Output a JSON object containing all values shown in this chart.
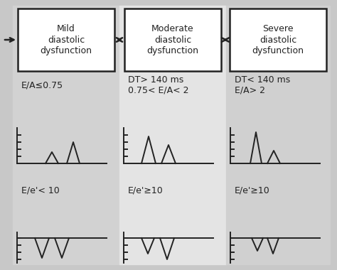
{
  "bg_outer": "#c8c8c8",
  "col1_bg": "#d2d2d2",
  "col2_bg": "#e4e4e4",
  "col3_bg": "#d0d0d0",
  "box_color": "#ffffff",
  "box_edge": "#222222",
  "text_color": "#222222",
  "line_color": "#222222",
  "headers": [
    "Mild\ndiastolic\ndysfunction",
    "Moderate\ndiastolic\ndysfunction",
    "Severe\ndiastolic\ndysfunction"
  ],
  "criteria1": [
    "E/A≤0.75",
    "DT> 140 ms\n0.75< E/A< 2",
    "DT< 140 ms\nE/A> 2"
  ],
  "criteria2": [
    "E/e'< 10",
    "E/e'≥10",
    "E/e'≥10"
  ],
  "figw": 4.74,
  "figh": 3.8,
  "dpi": 100
}
